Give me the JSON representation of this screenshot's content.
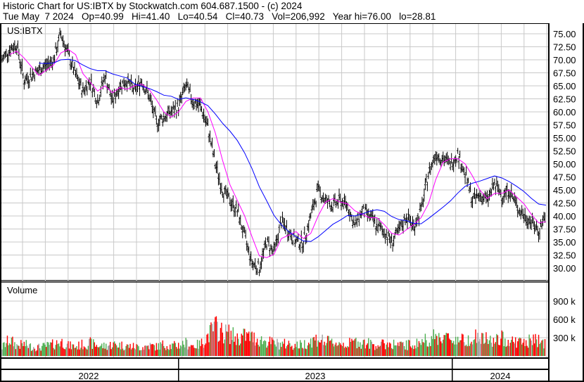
{
  "header": {
    "title": "Historic Chart for US:IBTX by Stockwatch.com 604.687.1500 - (c) 2024",
    "quote": "Tue May  7 2024   Op=40.99   Hi=41.40   Lo=40.54   Cl=40.73   Vol=206,992   Year hi=76.00   lo=28.81"
  },
  "chart_data": {
    "type": "line",
    "symbol": "US:IBTX",
    "volume_label": "Volume",
    "x_range": [
      "2022-05",
      "2024-05-07"
    ],
    "x_tick_labels": [
      "2022",
      "2023",
      "2024"
    ],
    "y_ticks": [
      "75.00",
      "72.50",
      "70.00",
      "67.50",
      "65.00",
      "62.50",
      "60.00",
      "57.50",
      "55.00",
      "52.50",
      "50.00",
      "47.50",
      "45.00",
      "42.50",
      "40.00",
      "37.50",
      "35.00",
      "32.50",
      "30.00"
    ],
    "ylim": [
      28,
      77
    ],
    "volume_ticks": [
      "900 k",
      "600 k",
      "300 k"
    ],
    "grid": true,
    "colors": {
      "price": "#000000",
      "short_ma": "#ff00ff",
      "long_ma": "#0000ff",
      "volume_up": "#4caf50",
      "volume_down": "#ff0000",
      "volume_flat": "#a0a0a0"
    },
    "close": [
      70,
      72,
      73,
      66,
      67,
      68,
      69,
      70,
      75,
      71,
      67,
      64,
      66,
      62,
      67,
      62,
      65,
      66,
      64,
      66,
      63,
      58,
      59,
      60,
      61,
      65,
      62,
      61,
      57,
      50,
      45,
      43,
      41,
      36,
      31,
      30,
      35,
      33,
      39,
      37,
      35,
      35,
      40,
      45,
      43,
      42,
      43,
      42,
      38,
      41,
      40,
      38,
      37,
      35,
      37,
      40,
      38,
      41,
      48,
      52,
      51,
      50,
      52,
      48,
      43,
      44,
      43,
      46,
      44,
      45,
      42,
      40,
      39,
      37,
      40.73
    ],
    "volume_k": [
      150,
      280,
      180,
      200,
      160,
      150,
      170,
      200,
      250,
      180,
      160,
      200,
      220,
      180,
      170,
      200,
      190,
      170,
      160,
      150,
      180,
      160,
      200,
      170,
      190,
      220,
      180,
      200,
      350,
      500,
      400,
      380,
      300,
      350,
      320,
      280,
      250,
      220,
      200,
      210,
      180,
      200,
      260,
      300,
      240,
      230,
      220,
      200,
      250,
      230,
      210,
      190,
      200,
      220,
      180,
      190,
      200,
      240,
      300,
      320,
      350,
      280,
      300,
      260,
      350,
      300,
      280,
      250,
      300,
      270,
      250,
      230,
      260,
      280,
      207
    ]
  }
}
